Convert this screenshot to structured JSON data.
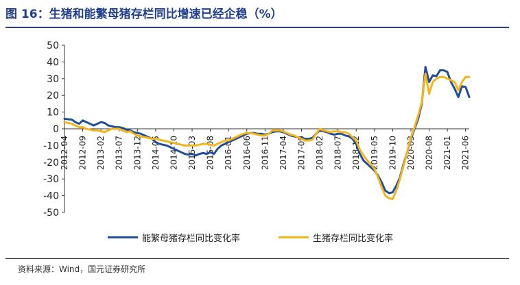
{
  "title": "图 16：生猪和能繁母猪存栏同比增速已经企稳（%）",
  "source": "资料来源：Wind，国元证券研究所",
  "chart_data": {
    "type": "line",
    "ylim": [
      -50,
      50
    ],
    "yticks": [
      50,
      40,
      30,
      20,
      10,
      0,
      -10,
      -20,
      -30,
      -40,
      -50
    ],
    "xlabels": [
      "2012-04",
      "2012-09",
      "2013-02",
      "2013-07",
      "2013-12",
      "2014-05",
      "2014-10",
      "2015-03",
      "2015-08",
      "2016-01",
      "2016-06",
      "2016-11",
      "2017-04",
      "2017-09",
      "2018-02",
      "2018-07",
      "2018-12",
      "2019-05",
      "2019-10",
      "2020-03",
      "2020-08",
      "2021-01",
      "2021-06"
    ],
    "x_start": "2012-04",
    "x_end": "2021-07",
    "legend_position": "bottom",
    "grid": false,
    "series": [
      {
        "name": "能繁母猪存栏同比变化率",
        "color": "#1f4e9c",
        "points": [
          [
            "2012-04",
            6
          ],
          [
            "2012-06",
            5.5
          ],
          [
            "2012-07",
            4
          ],
          [
            "2012-08",
            3
          ],
          [
            "2012-09",
            5
          ],
          [
            "2012-10",
            4
          ],
          [
            "2012-11",
            3
          ],
          [
            "2012-12",
            2
          ],
          [
            "2013-01",
            3
          ],
          [
            "2013-02",
            4
          ],
          [
            "2013-03",
            3.5
          ],
          [
            "2013-04",
            2
          ],
          [
            "2013-05",
            1.5
          ],
          [
            "2013-06",
            1
          ],
          [
            "2013-07",
            1
          ],
          [
            "2013-08",
            0.5
          ],
          [
            "2013-09",
            -0.5
          ],
          [
            "2013-10",
            -1
          ],
          [
            "2013-11",
            -2
          ],
          [
            "2013-12",
            -2.5
          ],
          [
            "2014-01",
            -3
          ],
          [
            "2014-02",
            -4
          ],
          [
            "2014-03",
            -5
          ],
          [
            "2014-04",
            -6
          ],
          [
            "2014-05",
            -8
          ],
          [
            "2014-06",
            -9
          ],
          [
            "2014-07",
            -9.5
          ],
          [
            "2014-08",
            -10
          ],
          [
            "2014-09",
            -11
          ],
          [
            "2014-10",
            -12
          ],
          [
            "2014-11",
            -13
          ],
          [
            "2014-12",
            -14
          ],
          [
            "2015-01",
            -15
          ],
          [
            "2015-02",
            -15.5
          ],
          [
            "2015-03",
            -15
          ],
          [
            "2015-04",
            -16
          ],
          [
            "2015-05",
            -15
          ],
          [
            "2015-06",
            -14.5
          ],
          [
            "2015-07",
            -15
          ],
          [
            "2015-08",
            -14
          ],
          [
            "2015-09",
            -15
          ],
          [
            "2015-10",
            -12
          ],
          [
            "2015-11",
            -10
          ],
          [
            "2015-12",
            -9
          ],
          [
            "2016-01",
            -8
          ],
          [
            "2016-02",
            -7
          ],
          [
            "2016-03",
            -6
          ],
          [
            "2016-04",
            -5
          ],
          [
            "2016-05",
            -4
          ],
          [
            "2016-06",
            -3
          ],
          [
            "2016-07",
            -2.5
          ],
          [
            "2016-08",
            -2.5
          ],
          [
            "2016-09",
            -3
          ],
          [
            "2016-10",
            -3
          ],
          [
            "2016-11",
            -3.5
          ],
          [
            "2016-12",
            -3
          ],
          [
            "2017-01",
            -2
          ],
          [
            "2017-02",
            -1.5
          ],
          [
            "2017-03",
            -1.5
          ],
          [
            "2017-04",
            -2
          ],
          [
            "2017-05",
            -3
          ],
          [
            "2017-06",
            -4
          ],
          [
            "2017-07",
            -4.5
          ],
          [
            "2017-08",
            -5
          ],
          [
            "2017-09",
            -5.5
          ],
          [
            "2017-10",
            -6
          ],
          [
            "2017-11",
            -6
          ],
          [
            "2017-12",
            -5.5
          ],
          [
            "2018-01",
            -3
          ],
          [
            "2018-02",
            -1
          ],
          [
            "2018-03",
            -1.5
          ],
          [
            "2018-04",
            -2
          ],
          [
            "2018-05",
            -3
          ],
          [
            "2018-06",
            -3.5
          ],
          [
            "2018-07",
            -3
          ],
          [
            "2018-08",
            -3
          ],
          [
            "2018-09",
            -4
          ],
          [
            "2018-10",
            -4.5
          ],
          [
            "2018-11",
            -6
          ],
          [
            "2018-12",
            -9
          ],
          [
            "2019-01",
            -15
          ],
          [
            "2019-02",
            -19
          ],
          [
            "2019-03",
            -21
          ],
          [
            "2019-04",
            -23
          ],
          [
            "2019-05",
            -25
          ],
          [
            "2019-06",
            -28
          ],
          [
            "2019-07",
            -32
          ],
          [
            "2019-08",
            -37
          ],
          [
            "2019-09",
            -38.5
          ],
          [
            "2019-10",
            -38
          ],
          [
            "2019-11",
            -34
          ],
          [
            "2019-12",
            -29
          ],
          [
            "2020-01",
            -21
          ],
          [
            "2020-02",
            -14
          ],
          [
            "2020-03",
            -6
          ],
          [
            "2020-04",
            0
          ],
          [
            "2020-05",
            6
          ],
          [
            "2020-06",
            15
          ],
          [
            "2020-07",
            37
          ],
          [
            "2020-08",
            28
          ],
          [
            "2020-09",
            32
          ],
          [
            "2020-10",
            31.5
          ],
          [
            "2020-11",
            35
          ],
          [
            "2020-12",
            35
          ],
          [
            "2021-01",
            34
          ],
          [
            "2021-02",
            28
          ],
          [
            "2021-03",
            24
          ],
          [
            "2021-04",
            19
          ],
          [
            "2021-05",
            25.5
          ],
          [
            "2021-06",
            25
          ],
          [
            "2021-07",
            19
          ]
        ]
      },
      {
        "name": "生猪存栏同比变化率",
        "color": "#f3b51a",
        "points": [
          [
            "2012-04",
            4
          ],
          [
            "2012-06",
            3
          ],
          [
            "2012-07",
            2
          ],
          [
            "2012-08",
            1
          ],
          [
            "2012-09",
            1
          ],
          [
            "2012-10",
            0
          ],
          [
            "2012-11",
            -0.5
          ],
          [
            "2012-12",
            -1
          ],
          [
            "2013-01",
            -1
          ],
          [
            "2013-02",
            -1.5
          ],
          [
            "2013-03",
            -2
          ],
          [
            "2013-04",
            -1
          ],
          [
            "2013-05",
            0
          ],
          [
            "2013-06",
            0
          ],
          [
            "2013-07",
            0
          ],
          [
            "2013-08",
            -1
          ],
          [
            "2013-09",
            -2
          ],
          [
            "2013-10",
            -1.5
          ],
          [
            "2013-11",
            -3
          ],
          [
            "2013-12",
            -4
          ],
          [
            "2014-01",
            -4.5
          ],
          [
            "2014-02",
            -5
          ],
          [
            "2014-03",
            -5.5
          ],
          [
            "2014-04",
            -6
          ],
          [
            "2014-05",
            -6
          ],
          [
            "2014-06",
            -6.5
          ],
          [
            "2014-07",
            -7
          ],
          [
            "2014-08",
            -7.5
          ],
          [
            "2014-09",
            -8
          ],
          [
            "2014-10",
            -8.5
          ],
          [
            "2014-11",
            -9
          ],
          [
            "2014-12",
            -9.5
          ],
          [
            "2015-01",
            -10
          ],
          [
            "2015-02",
            -10
          ],
          [
            "2015-03",
            -10
          ],
          [
            "2015-04",
            -10
          ],
          [
            "2015-05",
            -9.5
          ],
          [
            "2015-06",
            -9
          ],
          [
            "2015-07",
            -9
          ],
          [
            "2015-08",
            -9.5
          ],
          [
            "2015-09",
            -10
          ],
          [
            "2015-10",
            -9
          ],
          [
            "2015-11",
            -8
          ],
          [
            "2015-12",
            -7
          ],
          [
            "2016-01",
            -7
          ],
          [
            "2016-02",
            -6
          ],
          [
            "2016-03",
            -5
          ],
          [
            "2016-04",
            -4
          ],
          [
            "2016-05",
            -3
          ],
          [
            "2016-06",
            -2.5
          ],
          [
            "2016-07",
            -2.5
          ],
          [
            "2016-08",
            -3
          ],
          [
            "2016-09",
            -3.5
          ],
          [
            "2016-10",
            -4
          ],
          [
            "2016-11",
            -4
          ],
          [
            "2016-12",
            -3
          ],
          [
            "2017-01",
            -1
          ],
          [
            "2017-02",
            -1
          ],
          [
            "2017-03",
            -1
          ],
          [
            "2017-04",
            -1.5
          ],
          [
            "2017-05",
            -2.5
          ],
          [
            "2017-06",
            -3.5
          ],
          [
            "2017-07",
            -4
          ],
          [
            "2017-08",
            -5
          ],
          [
            "2017-09",
            -6
          ],
          [
            "2017-10",
            -7
          ],
          [
            "2017-11",
            -7
          ],
          [
            "2017-12",
            -6.5
          ],
          [
            "2018-01",
            -3
          ],
          [
            "2018-02",
            0
          ],
          [
            "2018-03",
            -1
          ],
          [
            "2018-04",
            -1.5
          ],
          [
            "2018-05",
            -2
          ],
          [
            "2018-06",
            -1.5
          ],
          [
            "2018-07",
            -1.5
          ],
          [
            "2018-08",
            -2
          ],
          [
            "2018-09",
            -2
          ],
          [
            "2018-10",
            -3
          ],
          [
            "2018-11",
            -5
          ],
          [
            "2018-12",
            -7
          ],
          [
            "2019-01",
            -12.5
          ],
          [
            "2019-02",
            -16
          ],
          [
            "2019-03",
            -19
          ],
          [
            "2019-04",
            -21
          ],
          [
            "2019-05",
            -24
          ],
          [
            "2019-06",
            -29
          ],
          [
            "2019-07",
            -35
          ],
          [
            "2019-08",
            -40
          ],
          [
            "2019-09",
            -41.5
          ],
          [
            "2019-10",
            -42
          ],
          [
            "2019-11",
            -37
          ],
          [
            "2019-12",
            -30
          ],
          [
            "2020-01",
            -22
          ],
          [
            "2020-02",
            -14
          ],
          [
            "2020-03",
            -5
          ],
          [
            "2020-04",
            1
          ],
          [
            "2020-05",
            8
          ],
          [
            "2020-06",
            16
          ],
          [
            "2020-07",
            33
          ],
          [
            "2020-08",
            21
          ],
          [
            "2020-09",
            28
          ],
          [
            "2020-10",
            30
          ],
          [
            "2020-11",
            31
          ],
          [
            "2020-12",
            31
          ],
          [
            "2021-01",
            30
          ],
          [
            "2021-02",
            29
          ],
          [
            "2021-03",
            28
          ],
          [
            "2021-04",
            23
          ],
          [
            "2021-05",
            28
          ],
          [
            "2021-06",
            31
          ],
          [
            "2021-07",
            31
          ]
        ]
      }
    ]
  }
}
